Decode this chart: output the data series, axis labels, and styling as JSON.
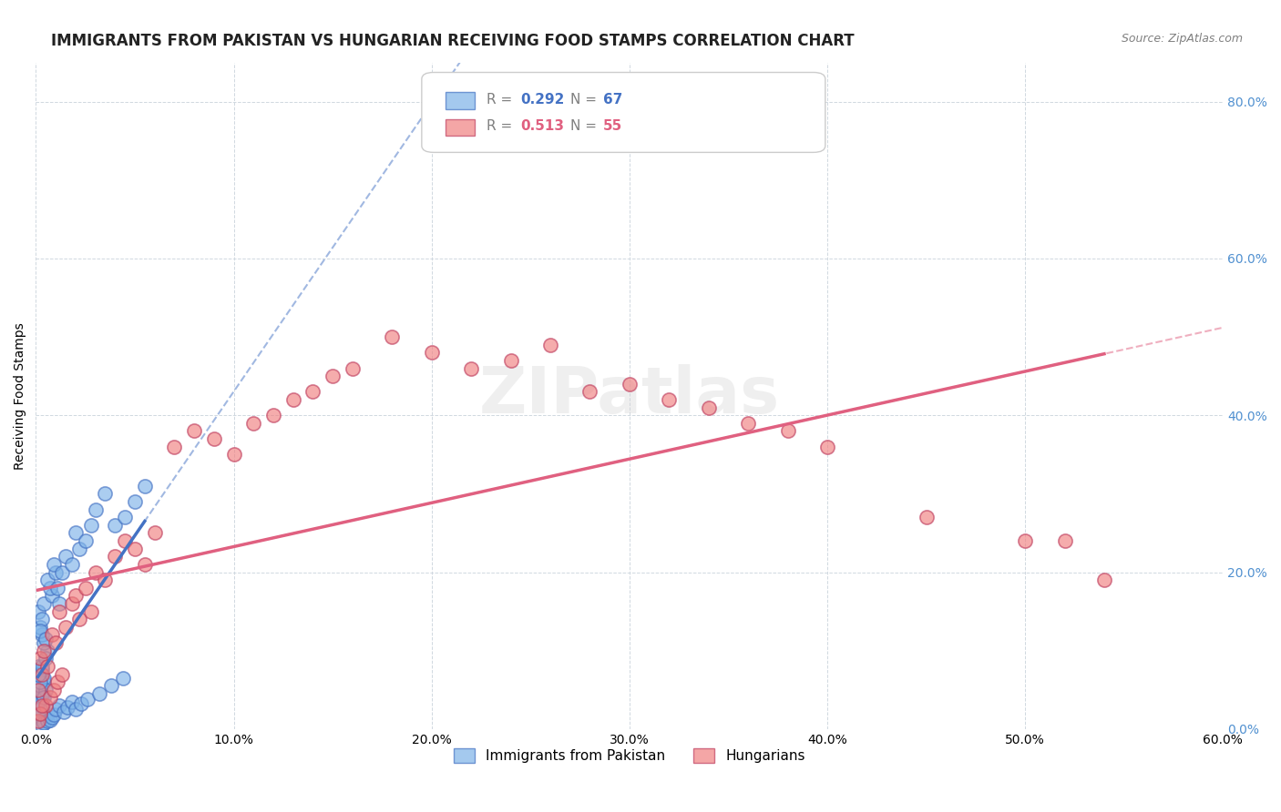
{
  "title": "IMMIGRANTS FROM PAKISTAN VS HUNGARIAN RECEIVING FOOD STAMPS CORRELATION CHART",
  "source": "Source: ZipAtlas.com",
  "xlabel": "",
  "ylabel": "Receiving Food Stamps",
  "xlim": [
    0.0,
    0.6
  ],
  "ylim": [
    0.0,
    0.85
  ],
  "xticks": [
    0.0,
    0.1,
    0.2,
    0.3,
    0.4,
    0.5,
    0.6
  ],
  "yticks": [
    0.0,
    0.2,
    0.4,
    0.6,
    0.8
  ],
  "ytick_labels": [
    "0.0%",
    "20.0%",
    "40.0%",
    "60.0%",
    "80.0%"
  ],
  "xtick_labels": [
    "0.0%",
    "10.0%",
    "20.0%",
    "30.0%",
    "40.0%",
    "50.0%",
    "60.0%"
  ],
  "watermark": "ZIPatlas",
  "legend_entries": [
    {
      "label": "Immigrants from Pakistan",
      "R": "0.292",
      "N": "67",
      "color": "#7eb3e8"
    },
    {
      "label": "Hungarians",
      "R": "0.513",
      "N": "55",
      "color": "#f08080"
    }
  ],
  "pakistan_x": [
    0.001,
    0.002,
    0.003,
    0.002,
    0.001,
    0.004,
    0.003,
    0.005,
    0.002,
    0.001,
    0.003,
    0.002,
    0.004,
    0.001,
    0.003,
    0.005,
    0.004,
    0.002,
    0.001,
    0.003,
    0.006,
    0.005,
    0.004,
    0.003,
    0.002,
    0.001,
    0.004,
    0.003,
    0.002,
    0.005,
    0.008,
    0.007,
    0.006,
    0.01,
    0.009,
    0.012,
    0.011,
    0.015,
    0.013,
    0.018,
    0.02,
    0.022,
    0.025,
    0.028,
    0.03,
    0.035,
    0.04,
    0.045,
    0.05,
    0.055,
    0.003,
    0.004,
    0.006,
    0.007,
    0.008,
    0.009,
    0.01,
    0.012,
    0.014,
    0.016,
    0.018,
    0.02,
    0.023,
    0.026,
    0.032,
    0.038,
    0.044
  ],
  "pakistan_y": [
    0.02,
    0.03,
    0.01,
    0.05,
    0.08,
    0.06,
    0.04,
    0.015,
    0.025,
    0.035,
    0.045,
    0.055,
    0.065,
    0.07,
    0.075,
    0.05,
    0.04,
    0.06,
    0.07,
    0.08,
    0.1,
    0.09,
    0.11,
    0.12,
    0.13,
    0.15,
    0.16,
    0.14,
    0.125,
    0.115,
    0.17,
    0.18,
    0.19,
    0.2,
    0.21,
    0.16,
    0.18,
    0.22,
    0.2,
    0.21,
    0.25,
    0.23,
    0.24,
    0.26,
    0.28,
    0.3,
    0.26,
    0.27,
    0.29,
    0.31,
    0.005,
    0.008,
    0.01,
    0.012,
    0.015,
    0.018,
    0.025,
    0.03,
    0.022,
    0.028,
    0.035,
    0.025,
    0.032,
    0.038,
    0.045,
    0.055,
    0.065
  ],
  "hungarian_x": [
    0.001,
    0.003,
    0.005,
    0.002,
    0.004,
    0.006,
    0.008,
    0.01,
    0.012,
    0.015,
    0.018,
    0.02,
    0.022,
    0.025,
    0.028,
    0.03,
    0.035,
    0.04,
    0.045,
    0.05,
    0.055,
    0.06,
    0.07,
    0.08,
    0.09,
    0.1,
    0.11,
    0.12,
    0.13,
    0.14,
    0.15,
    0.16,
    0.18,
    0.2,
    0.22,
    0.24,
    0.26,
    0.28,
    0.3,
    0.32,
    0.34,
    0.36,
    0.38,
    0.4,
    0.45,
    0.5,
    0.52,
    0.54,
    0.001,
    0.002,
    0.003,
    0.007,
    0.009,
    0.011,
    0.013
  ],
  "hungarian_y": [
    0.05,
    0.07,
    0.03,
    0.09,
    0.1,
    0.08,
    0.12,
    0.11,
    0.15,
    0.13,
    0.16,
    0.17,
    0.14,
    0.18,
    0.15,
    0.2,
    0.19,
    0.22,
    0.24,
    0.23,
    0.21,
    0.25,
    0.36,
    0.38,
    0.37,
    0.35,
    0.39,
    0.4,
    0.42,
    0.43,
    0.45,
    0.46,
    0.5,
    0.48,
    0.46,
    0.47,
    0.49,
    0.43,
    0.44,
    0.42,
    0.41,
    0.39,
    0.38,
    0.36,
    0.27,
    0.24,
    0.24,
    0.19,
    0.01,
    0.02,
    0.03,
    0.04,
    0.05,
    0.06,
    0.07
  ],
  "pakistan_color": "#7eb3e8",
  "hungarian_color": "#f08080",
  "pakistan_line_color": "#4472c4",
  "hungarian_line_color": "#e06080",
  "background_color": "#ffffff",
  "grid_color": "#d0d8e0",
  "title_fontsize": 12,
  "axis_label_fontsize": 10,
  "tick_fontsize": 10,
  "legend_fontsize": 11
}
